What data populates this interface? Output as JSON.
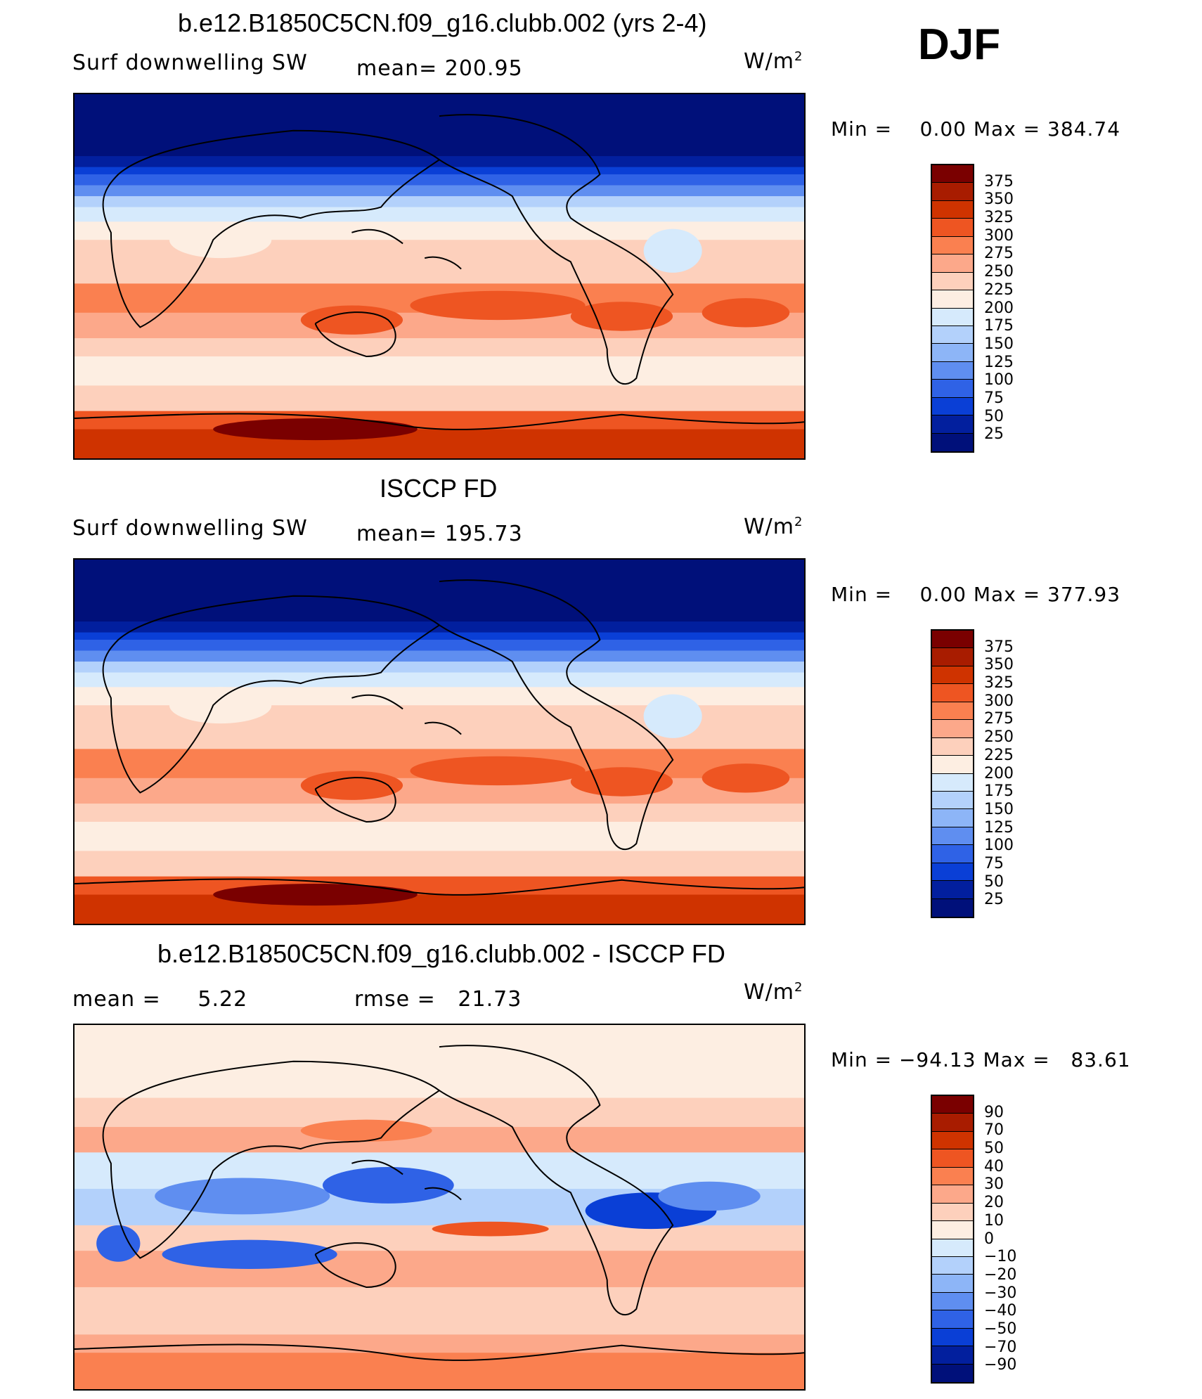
{
  "season": "DJF",
  "panels": [
    {
      "title": "b.e12.B1850C5CN.f09_g16.clubb.002 (yrs 2-4)",
      "left_label": "Surf downwelling SW",
      "center_label": "mean= 200.95",
      "unit": "W/m",
      "unit_sup": "2",
      "minmax": "Min =    0.00 Max = 384.74",
      "colorbar": {
        "labels": [
          "375",
          "350",
          "325",
          "300",
          "275",
          "250",
          "225",
          "200",
          "175",
          "150",
          "125",
          "100",
          "75",
          "50",
          "25"
        ],
        "colors": [
          "#7a0000",
          "#a81c00",
          "#cf3300",
          "#ee5522",
          "#fa8050",
          "#fca88a",
          "#fdd0bc",
          "#fdeee2",
          "#d6eafc",
          "#b3d1fb",
          "#8db5f7",
          "#5f8ef0",
          "#2f62e6",
          "#0a3fd6",
          "#021f9e",
          "#00107a"
        ]
      }
    },
    {
      "title": "ISCCP FD",
      "left_label": "Surf downwelling SW",
      "center_label": "mean= 195.73",
      "unit": "W/m",
      "unit_sup": "2",
      "minmax": "Min =    0.00 Max = 377.93",
      "colorbar": {
        "labels": [
          "375",
          "350",
          "325",
          "300",
          "275",
          "250",
          "225",
          "200",
          "175",
          "150",
          "125",
          "100",
          "75",
          "50",
          "25"
        ],
        "colors": [
          "#7a0000",
          "#a81c00",
          "#cf3300",
          "#ee5522",
          "#fa8050",
          "#fca88a",
          "#fdd0bc",
          "#fdeee2",
          "#d6eafc",
          "#b3d1fb",
          "#8db5f7",
          "#5f8ef0",
          "#2f62e6",
          "#0a3fd6",
          "#021f9e",
          "#00107a"
        ]
      }
    },
    {
      "title": "b.e12.B1850C5CN.f09_g16.clubb.002 - ISCCP FD",
      "left_label": "mean =     5.22",
      "center_label": "rmse =   21.73",
      "unit": "W/m",
      "unit_sup": "2",
      "minmax": "Min = −94.13 Max =   83.61",
      "colorbar": {
        "labels": [
          "90",
          "70",
          "50",
          "40",
          "30",
          "20",
          "10",
          "0",
          "−10",
          "−20",
          "−30",
          "−40",
          "−50",
          "−70",
          "−90"
        ],
        "colors": [
          "#7a0000",
          "#a81c00",
          "#cf3300",
          "#ee5522",
          "#fa8050",
          "#fca88a",
          "#fdd0bc",
          "#fdeee2",
          "#d6eafc",
          "#b3d1fb",
          "#8db5f7",
          "#5f8ef0",
          "#2f62e6",
          "#0a3fd6",
          "#021f9e",
          "#00107a"
        ]
      }
    }
  ]
}
